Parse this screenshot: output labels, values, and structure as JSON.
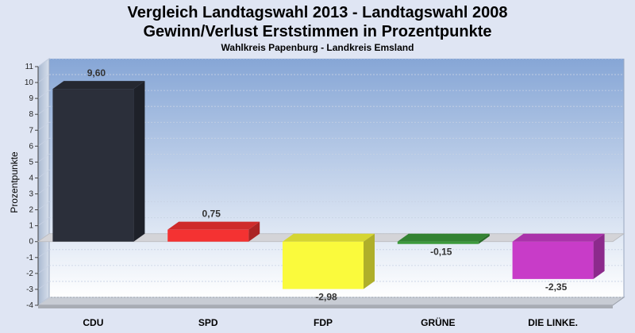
{
  "chart_data": {
    "type": "bar",
    "title": "Vergleich Landtagswahl 2013 - Landtagswahl 2008",
    "title_line2": "Gewinn/Verlust Erststimmen in Prozentpunkte",
    "subtitle": "Wahlkreis Papenburg - Landkreis Emsland",
    "ylabel": "Prozentpunkte",
    "xlabel": "",
    "ylim": [
      -4,
      11
    ],
    "yticks": [
      11,
      10,
      9,
      8,
      7,
      6,
      5,
      4,
      3,
      2,
      1,
      0,
      -1,
      -2,
      -3,
      -4
    ],
    "categories": [
      "CDU",
      "SPD",
      "FDP",
      "GRÜNE",
      "DIE LINKE."
    ],
    "values": [
      9.6,
      0.75,
      -2.98,
      -0.15,
      -2.35
    ],
    "value_labels": [
      "9,60",
      "0,75",
      "-2,98",
      "-0,15",
      "-2,35"
    ],
    "colors": [
      "#2b2f3a",
      "#f43232",
      "#fafa3c",
      "#3c9a3c",
      "#c83cc8"
    ],
    "legend": "none",
    "grid": true
  }
}
